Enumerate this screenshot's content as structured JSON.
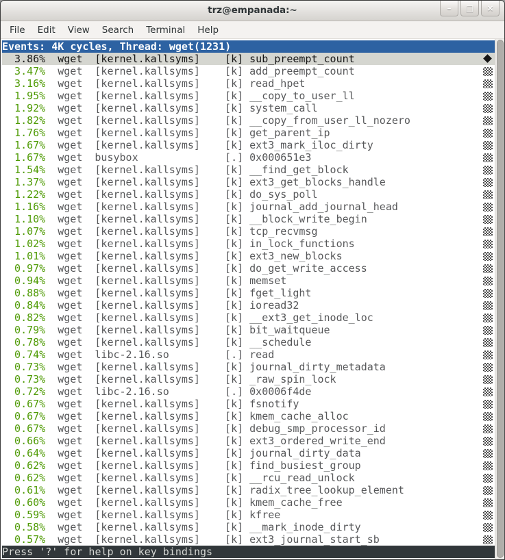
{
  "window": {
    "title": "trz@empanada:~",
    "controls": {
      "minimize": "–",
      "maximize": "□",
      "close": "×"
    }
  },
  "menu": {
    "items": [
      "File",
      "Edit",
      "View",
      "Search",
      "Terminal",
      "Help"
    ]
  },
  "perf": {
    "header": "Events: 4K cycles, Thread: wget(1231)",
    "status": "Press '?' for help on key bindings",
    "rows": [
      {
        "pct": "3.86%",
        "cmd": "wget",
        "dso": "[kernel.kallsyms]",
        "type": "[k]",
        "symbol": "sub_preempt_count",
        "selected": true
      },
      {
        "pct": "3.47%",
        "cmd": "wget",
        "dso": "[kernel.kallsyms]",
        "type": "[k]",
        "symbol": "add_preempt_count"
      },
      {
        "pct": "3.16%",
        "cmd": "wget",
        "dso": "[kernel.kallsyms]",
        "type": "[k]",
        "symbol": "read_hpet"
      },
      {
        "pct": "1.95%",
        "cmd": "wget",
        "dso": "[kernel.kallsyms]",
        "type": "[k]",
        "symbol": "__copy_to_user_ll"
      },
      {
        "pct": "1.92%",
        "cmd": "wget",
        "dso": "[kernel.kallsyms]",
        "type": "[k]",
        "symbol": "system_call"
      },
      {
        "pct": "1.82%",
        "cmd": "wget",
        "dso": "[kernel.kallsyms]",
        "type": "[k]",
        "symbol": "__copy_from_user_ll_nozero"
      },
      {
        "pct": "1.76%",
        "cmd": "wget",
        "dso": "[kernel.kallsyms]",
        "type": "[k]",
        "symbol": "get_parent_ip"
      },
      {
        "pct": "1.67%",
        "cmd": "wget",
        "dso": "[kernel.kallsyms]",
        "type": "[k]",
        "symbol": "ext3_mark_iloc_dirty"
      },
      {
        "pct": "1.67%",
        "cmd": "wget",
        "dso": "busybox",
        "type": "[.]",
        "symbol": "0x000651e3"
      },
      {
        "pct": "1.54%",
        "cmd": "wget",
        "dso": "[kernel.kallsyms]",
        "type": "[k]",
        "symbol": "__find_get_block"
      },
      {
        "pct": "1.37%",
        "cmd": "wget",
        "dso": "[kernel.kallsyms]",
        "type": "[k]",
        "symbol": "ext3_get_blocks_handle"
      },
      {
        "pct": "1.22%",
        "cmd": "wget",
        "dso": "[kernel.kallsyms]",
        "type": "[k]",
        "symbol": "do_sys_poll"
      },
      {
        "pct": "1.16%",
        "cmd": "wget",
        "dso": "[kernel.kallsyms]",
        "type": "[k]",
        "symbol": "journal_add_journal_head"
      },
      {
        "pct": "1.10%",
        "cmd": "wget",
        "dso": "[kernel.kallsyms]",
        "type": "[k]",
        "symbol": "__block_write_begin"
      },
      {
        "pct": "1.07%",
        "cmd": "wget",
        "dso": "[kernel.kallsyms]",
        "type": "[k]",
        "symbol": "tcp_recvmsg"
      },
      {
        "pct": "1.02%",
        "cmd": "wget",
        "dso": "[kernel.kallsyms]",
        "type": "[k]",
        "symbol": "in_lock_functions"
      },
      {
        "pct": "1.01%",
        "cmd": "wget",
        "dso": "[kernel.kallsyms]",
        "type": "[k]",
        "symbol": "ext3_new_blocks"
      },
      {
        "pct": "0.97%",
        "cmd": "wget",
        "dso": "[kernel.kallsyms]",
        "type": "[k]",
        "symbol": "do_get_write_access"
      },
      {
        "pct": "0.94%",
        "cmd": "wget",
        "dso": "[kernel.kallsyms]",
        "type": "[k]",
        "symbol": "memset"
      },
      {
        "pct": "0.88%",
        "cmd": "wget",
        "dso": "[kernel.kallsyms]",
        "type": "[k]",
        "symbol": "fget_light"
      },
      {
        "pct": "0.84%",
        "cmd": "wget",
        "dso": "[kernel.kallsyms]",
        "type": "[k]",
        "symbol": "ioread32"
      },
      {
        "pct": "0.82%",
        "cmd": "wget",
        "dso": "[kernel.kallsyms]",
        "type": "[k]",
        "symbol": "__ext3_get_inode_loc"
      },
      {
        "pct": "0.79%",
        "cmd": "wget",
        "dso": "[kernel.kallsyms]",
        "type": "[k]",
        "symbol": "bit_waitqueue"
      },
      {
        "pct": "0.78%",
        "cmd": "wget",
        "dso": "[kernel.kallsyms]",
        "type": "[k]",
        "symbol": "__schedule"
      },
      {
        "pct": "0.74%",
        "cmd": "wget",
        "dso": "libc-2.16.so",
        "type": "[.]",
        "symbol": "read"
      },
      {
        "pct": "0.73%",
        "cmd": "wget",
        "dso": "[kernel.kallsyms]",
        "type": "[k]",
        "symbol": "journal_dirty_metadata"
      },
      {
        "pct": "0.73%",
        "cmd": "wget",
        "dso": "[kernel.kallsyms]",
        "type": "[k]",
        "symbol": "_raw_spin_lock"
      },
      {
        "pct": "0.72%",
        "cmd": "wget",
        "dso": "libc-2.16.so",
        "type": "[.]",
        "symbol": "0x0006f4de"
      },
      {
        "pct": "0.67%",
        "cmd": "wget",
        "dso": "[kernel.kallsyms]",
        "type": "[k]",
        "symbol": "fsnotify"
      },
      {
        "pct": "0.67%",
        "cmd": "wget",
        "dso": "[kernel.kallsyms]",
        "type": "[k]",
        "symbol": "kmem_cache_alloc"
      },
      {
        "pct": "0.67%",
        "cmd": "wget",
        "dso": "[kernel.kallsyms]",
        "type": "[k]",
        "symbol": "debug_smp_processor_id"
      },
      {
        "pct": "0.66%",
        "cmd": "wget",
        "dso": "[kernel.kallsyms]",
        "type": "[k]",
        "symbol": "ext3_ordered_write_end"
      },
      {
        "pct": "0.64%",
        "cmd": "wget",
        "dso": "[kernel.kallsyms]",
        "type": "[k]",
        "symbol": "journal_dirty_data"
      },
      {
        "pct": "0.62%",
        "cmd": "wget",
        "dso": "[kernel.kallsyms]",
        "type": "[k]",
        "symbol": "find_busiest_group"
      },
      {
        "pct": "0.62%",
        "cmd": "wget",
        "dso": "[kernel.kallsyms]",
        "type": "[k]",
        "symbol": "__rcu_read_unlock"
      },
      {
        "pct": "0.61%",
        "cmd": "wget",
        "dso": "[kernel.kallsyms]",
        "type": "[k]",
        "symbol": "radix_tree_lookup_element"
      },
      {
        "pct": "0.60%",
        "cmd": "wget",
        "dso": "[kernel.kallsyms]",
        "type": "[k]",
        "symbol": "kmem_cache_free"
      },
      {
        "pct": "0.59%",
        "cmd": "wget",
        "dso": "[kernel.kallsyms]",
        "type": "[k]",
        "symbol": "kfree"
      },
      {
        "pct": "0.58%",
        "cmd": "wget",
        "dso": "[kernel.kallsyms]",
        "type": "[k]",
        "symbol": "__mark_inode_dirty"
      },
      {
        "pct": "0.57%",
        "cmd": "wget",
        "dso": "[kernel.kallsyms]",
        "type": "[k]",
        "symbol": "ext3_journal_start_sb"
      }
    ]
  },
  "colors": {
    "header_bg": "#2d62a2",
    "percent_green": "#4f9b05",
    "text_gray": "#57585a",
    "selected_bg": "#d5d6d0",
    "status_bg": "#31373a"
  }
}
